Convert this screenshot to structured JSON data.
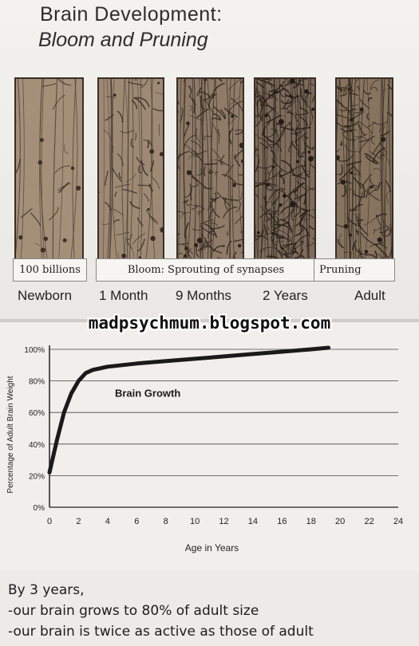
{
  "slide": {
    "title_line1": "Brain Development:",
    "title_line2": "Bloom and Pruning",
    "stages": [
      {
        "label": "Newborn",
        "density": 1
      },
      {
        "label": "1 Month",
        "density": 2
      },
      {
        "label": "9 Months",
        "density": 3
      },
      {
        "label": "2 Years",
        "density": 4
      },
      {
        "label": "Adult",
        "density": 3
      }
    ],
    "banners": {
      "newborn": "100 billions",
      "bloom": "Bloom: Sprouting of synapses",
      "pruning": "Pruning"
    }
  },
  "watermark": "madpsychmum.blogspot.com",
  "chart_data": {
    "type": "line",
    "annotation": "Brain Growth",
    "xlabel": "Age in Years",
    "ylabel": "Percentage of Adult Brain Weight",
    "xlim": [
      0,
      24
    ],
    "ylim": [
      0,
      100
    ],
    "xticks": [
      "0",
      "2",
      "4",
      "6",
      "8",
      "10",
      "12",
      "14",
      "16",
      "18",
      "20",
      "22",
      "24"
    ],
    "yticks": [
      "0%",
      "20%",
      "40%",
      "60%",
      "80%",
      "100%"
    ],
    "grid": true,
    "x": [
      0,
      0.5,
      1,
      1.5,
      2,
      2.5,
      3,
      4,
      6,
      8,
      10,
      12,
      14,
      16,
      18,
      19.2
    ],
    "y": [
      22,
      42,
      60,
      72,
      80,
      85,
      87,
      89,
      91,
      92.5,
      94,
      95.5,
      97,
      98.5,
      100,
      101
    ]
  },
  "footer": {
    "line1": "By 3 years,",
    "line2": "-our brain grows to 80% of adult size",
    "line3": "-our brain is twice as active as those of adult"
  }
}
